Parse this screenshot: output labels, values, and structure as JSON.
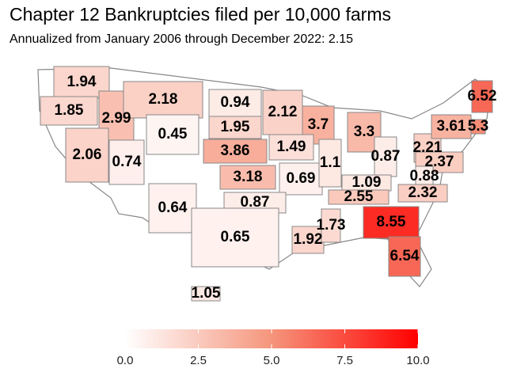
{
  "chart_data": {
    "type": "choropleth",
    "title": "Chapter 12 Bankruptcies filed per 10,000 farms",
    "subtitle": "Annualized from January 2006 through December 2022: 2.15",
    "regions": [
      {
        "value": 1.94
      },
      {
        "value": 1.85
      },
      {
        "value": 2.99
      },
      {
        "value": 2.18
      },
      {
        "value": 0.94
      },
      {
        "value": 2.12
      },
      {
        "value": 3.7
      },
      {
        "value": 3.3
      },
      {
        "value": 1.95
      },
      {
        "value": 3.86
      },
      {
        "value": 1.49
      },
      {
        "value": 2.06
      },
      {
        "value": 0.74
      },
      {
        "value": 0.45
      },
      {
        "value": 3.18
      },
      {
        "value": 0.69
      },
      {
        "value": 1.1
      },
      {
        "value": 0.87
      },
      {
        "value": 2.21
      },
      {
        "value": 2.37
      },
      {
        "value": 1.09
      },
      {
        "value": 0.88
      },
      {
        "value": 2.32
      },
      {
        "value": 2.55
      },
      {
        "value": 0.64
      },
      {
        "value": 0.87
      },
      {
        "value": 0.65
      },
      {
        "value": 1.92
      },
      {
        "value": 1.73
      },
      {
        "value": 8.55
      },
      {
        "value": 6.54
      },
      {
        "value": 1.05
      },
      {
        "value": 6.52
      },
      {
        "value": 3.61
      },
      {
        "value": 5.3
      }
    ],
    "colors": [
      "#ffffff",
      "#f5957c",
      "#ff0000"
    ],
    "colorbar_lim": [
      0,
      10
    ],
    "colorbar_ticks": [
      {
        "value": 0,
        "label": "0.0"
      },
      2.5,
      {
        "value": 5,
        "label": "5.0"
      },
      7.5,
      {
        "value": 10,
        "label": "10.0"
      }
    ]
  }
}
